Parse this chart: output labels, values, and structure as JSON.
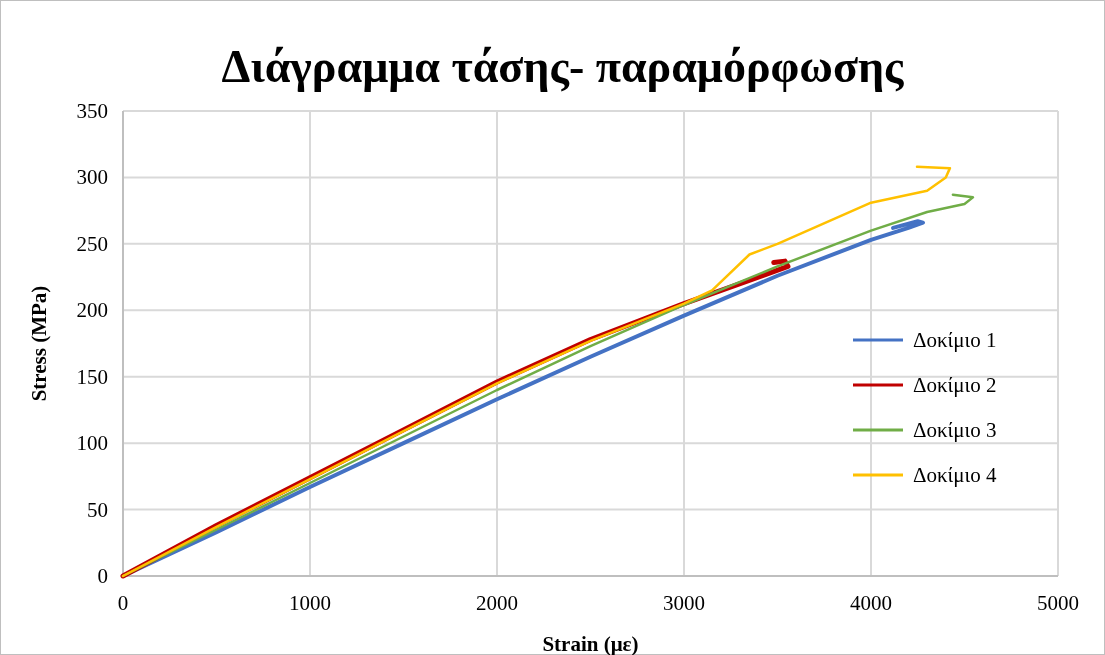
{
  "chart_data": {
    "type": "line",
    "title": "Διάγραμμα τάσης- παραμόρφωσης",
    "xlabel": "Strain (με)",
    "ylabel": "Stress (MPa)",
    "xlim": [
      0,
      5000
    ],
    "xticks": [
      0,
      1000,
      2000,
      3000,
      4000,
      5000
    ],
    "ylim": [
      0,
      350
    ],
    "yticks": [
      0,
      50,
      100,
      150,
      200,
      250,
      300,
      350
    ],
    "grid": true,
    "legend": "right",
    "marker": "none",
    "line_style": "solid",
    "series": [
      {
        "name": "Δοκίμιο 1",
        "color": "#4472c4",
        "x": [
          0,
          500,
          1000,
          1500,
          2000,
          2500,
          3000,
          3500,
          4000,
          4200,
          4278,
          4250,
          4118
        ],
        "values": [
          0,
          33,
          67,
          100,
          133,
          165,
          196,
          226,
          253,
          262,
          266,
          267,
          262
        ]
      },
      {
        "name": "Δοκίμιο 2",
        "color": "#c00000",
        "x": [
          0,
          500,
          1000,
          1500,
          2000,
          2500,
          3000,
          3300,
          3556,
          3540,
          3480
        ],
        "values": [
          0,
          38,
          74,
          110,
          146,
          178,
          205,
          220,
          233,
          237,
          236
        ]
      },
      {
        "name": "Δοκίμιο 3",
        "color": "#70ad47",
        "x": [
          0,
          500,
          1000,
          1500,
          2000,
          2500,
          3000,
          3500,
          4000,
          4300,
          4500,
          4545,
          4438
        ],
        "values": [
          0,
          35,
          70,
          105,
          140,
          173,
          204,
          233,
          260,
          274,
          280,
          285,
          287
        ]
      },
      {
        "name": "Δοκίμιο 4",
        "color": "#ffc000",
        "x": [
          0,
          500,
          1000,
          1500,
          2000,
          2500,
          3000,
          3150,
          3350,
          3500,
          4000,
          4300,
          4400,
          4422,
          4246
        ],
        "values": [
          0,
          37,
          73,
          109,
          145,
          177,
          205,
          215,
          242,
          250,
          281,
          290,
          300,
          307,
          308
        ]
      }
    ]
  }
}
